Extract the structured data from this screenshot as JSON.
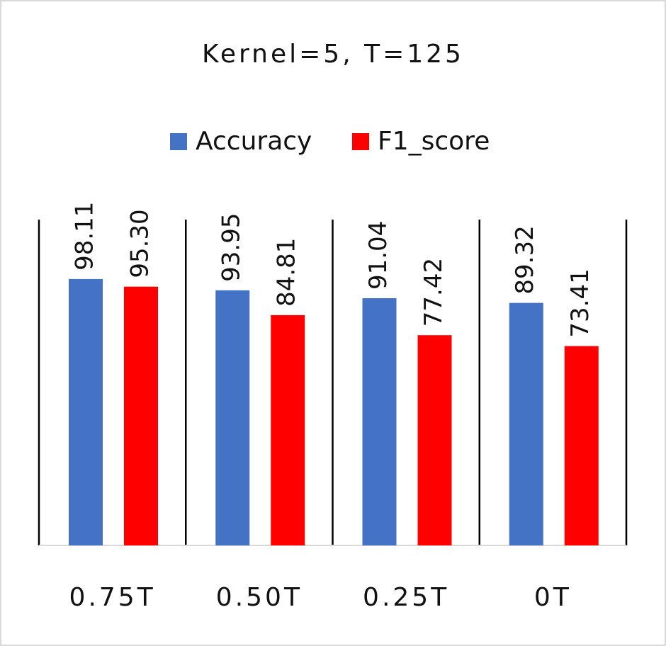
{
  "chart_data": {
    "type": "bar",
    "title": "Kernel=5, T=125",
    "categories": [
      "0.75T",
      "0.50T",
      "0.25T",
      "0T"
    ],
    "series": [
      {
        "name": "Accuracy",
        "color": "#4472c4",
        "values": [
          98.11,
          93.95,
          91.04,
          89.32
        ],
        "value_labels": [
          "98.11",
          "93.95",
          "91.04",
          "89.32"
        ]
      },
      {
        "name": "F1_score",
        "color": "#ff0000",
        "values": [
          95.3,
          84.81,
          77.42,
          73.41
        ],
        "value_labels": [
          "95.30",
          "84.81",
          "77.42",
          "73.41"
        ]
      }
    ],
    "ylim": [
      0,
      120
    ]
  }
}
